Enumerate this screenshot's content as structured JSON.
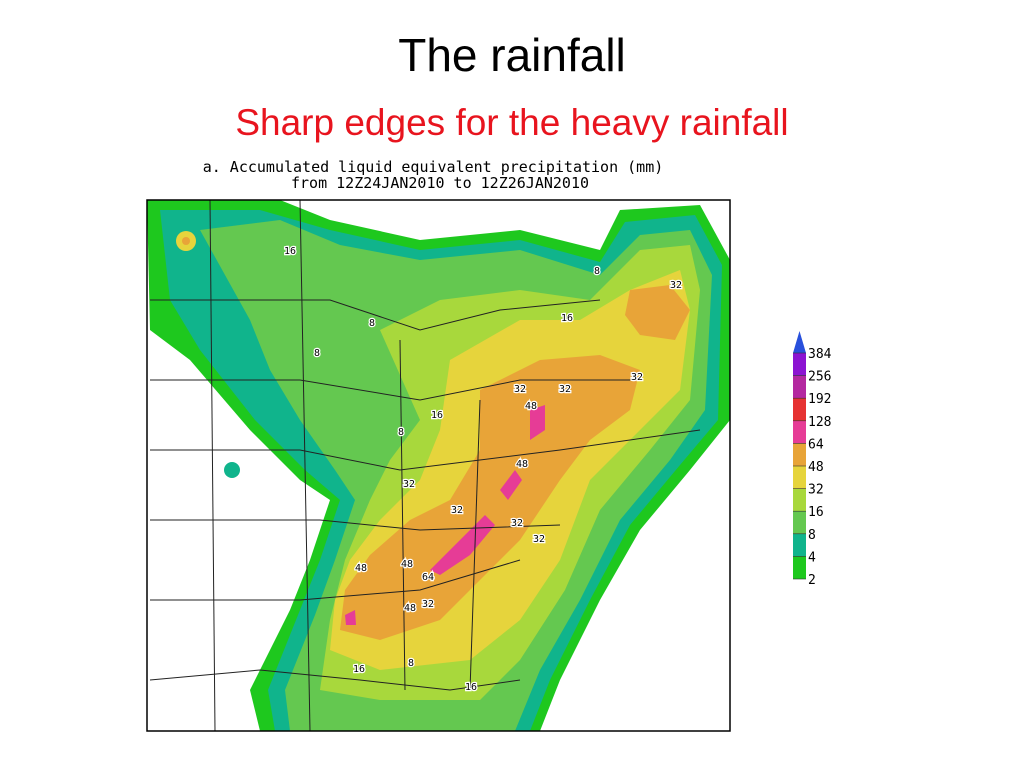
{
  "header": {
    "title": "The rainfall",
    "subtitle": "Sharp edges for the heavy rainfall"
  },
  "map": {
    "caption_line1": "a. Accumulated liquid equivalent precipitation (mm)",
    "caption_line2": "from 12Z24JAN2010 to 12Z26JAN2010",
    "contour_labels": [
      16,
      8,
      8,
      8,
      16,
      32,
      16,
      8,
      32,
      32,
      32,
      48,
      48,
      32,
      32,
      32,
      32,
      48,
      48,
      64,
      48,
      32,
      16,
      8,
      16
    ],
    "legend": {
      "levels": [
        2,
        4,
        8,
        16,
        32,
        48,
        64,
        128,
        192,
        256,
        384
      ],
      "colors": [
        "#1ec81e",
        "#10b48c",
        "#64c850",
        "#a8d83c",
        "#e6d43c",
        "#e8a438",
        "#e63c96",
        "#e63232",
        "#b428a0",
        "#8c14d2",
        "#2850dc"
      ]
    }
  }
}
